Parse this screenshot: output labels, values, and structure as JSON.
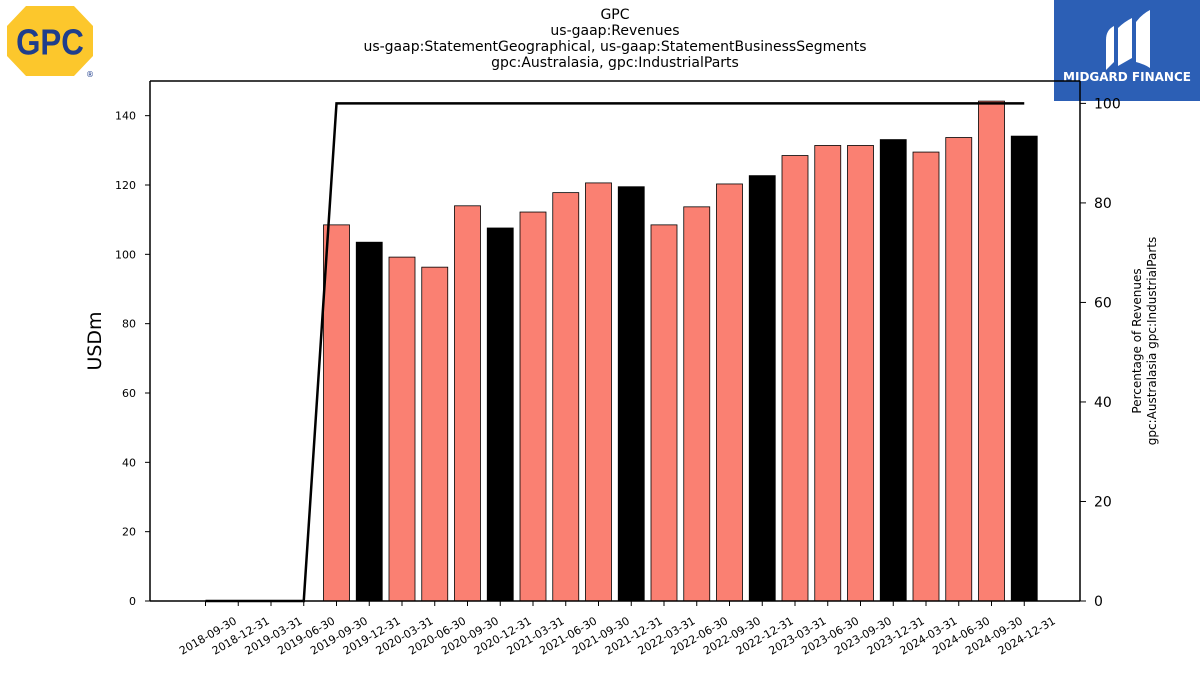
{
  "titles": {
    "line1": "GPC",
    "line2": "us-gaap:Revenues",
    "line3": "us-gaap:StatementGeographical, us-gaap:StatementBusinessSegments",
    "line4": "gpc:Australasia, gpc:IndustrialParts"
  },
  "logos": {
    "left_text": "GPC",
    "left_mark": "®",
    "right_text": "MIDGARD FINANCE"
  },
  "colors": {
    "bar_regular": "#fa8072",
    "bar_q4": "#000000",
    "line": "#000000",
    "gpc_yellow": "#fcc72c",
    "gpc_blue": "#1f3e8c",
    "midgard_blue": "#2c5fb5"
  },
  "chart_data": {
    "type": "bar",
    "ylabel": "USDm",
    "y2label_line1": "Percentage of Revenues",
    "y2label_line2": "gpc:Australasia gpc:IndustrialParts",
    "ylim": [
      0,
      150
    ],
    "y2lim": [
      0,
      104.5
    ],
    "yticks": [
      0,
      20,
      40,
      60,
      80,
      100,
      120,
      140
    ],
    "y2ticks": [
      0,
      20,
      40,
      60,
      80,
      100
    ],
    "grid": false,
    "categories": [
      "2018-09-30",
      "2018-12-31",
      "2019-03-31",
      "2019-06-30",
      "2019-09-30",
      "2019-12-31",
      "2020-03-31",
      "2020-06-30",
      "2020-09-30",
      "2020-12-31",
      "2021-03-31",
      "2021-06-30",
      "2021-09-30",
      "2021-12-31",
      "2022-03-31",
      "2022-06-30",
      "2022-09-30",
      "2022-12-31",
      "2023-03-31",
      "2023-06-30",
      "2023-09-30",
      "2023-12-31",
      "2024-03-31",
      "2024-06-30",
      "2024-09-30",
      "2024-12-31"
    ],
    "series": [
      {
        "type": "bar",
        "values": [
          0,
          0,
          0,
          0,
          108.5,
          103.5,
          99.2,
          96.3,
          114,
          107.6,
          112.2,
          117.8,
          120.6,
          119.5,
          108.5,
          113.7,
          120.3,
          122.7,
          128.5,
          131.4,
          131.4,
          133.1,
          129.5,
          133.7,
          144.2,
          134.1
        ],
        "highlight": [
          false,
          true,
          false,
          false,
          false,
          true,
          false,
          false,
          false,
          true,
          false,
          false,
          false,
          true,
          false,
          false,
          false,
          true,
          false,
          false,
          false,
          true,
          false,
          false,
          false,
          true
        ]
      },
      {
        "type": "line",
        "axis": "right",
        "values": [
          0,
          0,
          0,
          0,
          100,
          100,
          100,
          100,
          100,
          100,
          100,
          100,
          100,
          100,
          100,
          100,
          100,
          100,
          100,
          100,
          100,
          100,
          100,
          100,
          100,
          100
        ]
      }
    ]
  }
}
